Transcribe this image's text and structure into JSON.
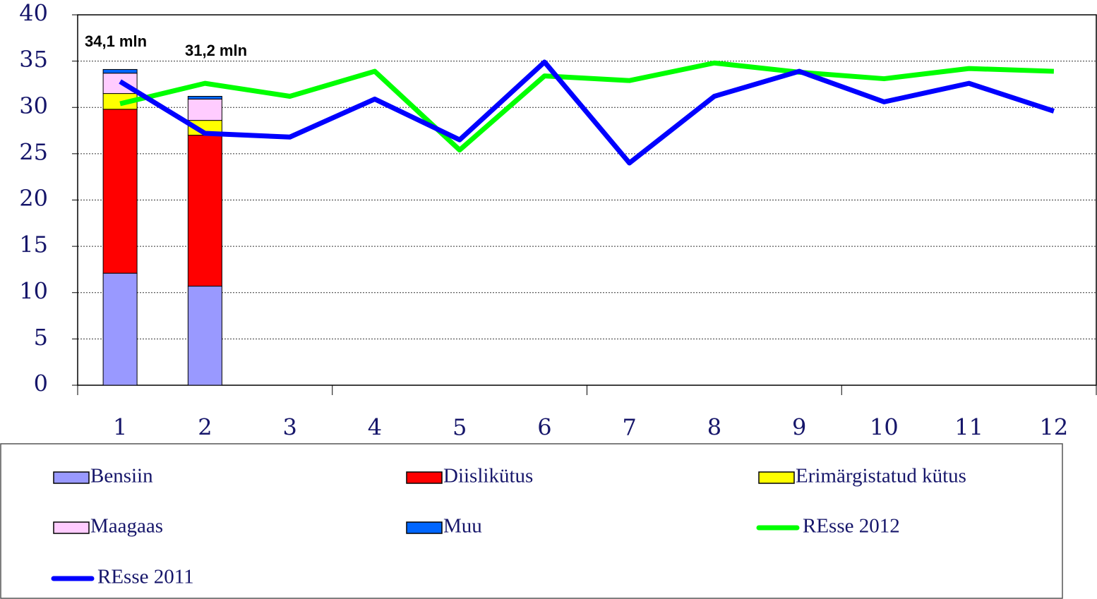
{
  "chart_data": {
    "type": "bar",
    "stacked": true,
    "categories": [
      "1",
      "2",
      "3",
      "4",
      "5",
      "6",
      "7",
      "8",
      "9",
      "10",
      "11",
      "12"
    ],
    "series": [
      {
        "name": "Bensiin",
        "type": "bar",
        "color": "#9999ff",
        "values": [
          12.1,
          10.7,
          null,
          null,
          null,
          null,
          null,
          null,
          null,
          null,
          null,
          null
        ]
      },
      {
        "name": "Diislikütus",
        "type": "bar",
        "color": "#ff0000",
        "values": [
          17.7,
          16.3,
          null,
          null,
          null,
          null,
          null,
          null,
          null,
          null,
          null,
          null
        ]
      },
      {
        "name": "Erimärgistatud kütus",
        "type": "bar",
        "color": "#ffff00",
        "values": [
          1.7,
          1.6,
          null,
          null,
          null,
          null,
          null,
          null,
          null,
          null,
          null,
          null
        ]
      },
      {
        "name": "Maagaas",
        "type": "bar",
        "color": "#ffccff",
        "values": [
          2.2,
          2.3,
          null,
          null,
          null,
          null,
          null,
          null,
          null,
          null,
          null,
          null
        ]
      },
      {
        "name": "Muu",
        "type": "bar",
        "color": "#0066ff",
        "values": [
          0.4,
          0.3,
          null,
          null,
          null,
          null,
          null,
          null,
          null,
          null,
          null,
          null
        ]
      },
      {
        "name": "REsse 2012",
        "type": "line",
        "color": "#00ff00",
        "values": [
          30.4,
          32.6,
          31.2,
          33.9,
          25.4,
          33.4,
          32.9,
          34.8,
          33.8,
          33.1,
          34.2,
          33.9
        ]
      },
      {
        "name": "REsse 2011",
        "type": "line",
        "color": "#0000ff",
        "values": [
          32.8,
          27.2,
          26.8,
          30.9,
          26.5,
          34.9,
          24.0,
          31.2,
          33.9,
          30.6,
          32.6,
          29.6
        ]
      }
    ],
    "annotations": [
      "34,1 mln",
      "31,2 mln"
    ],
    "ylim": [
      0,
      40
    ],
    "yticks": [
      0,
      5,
      10,
      15,
      20,
      25,
      30,
      35,
      40
    ],
    "grid": true,
    "legend": "bottom"
  }
}
